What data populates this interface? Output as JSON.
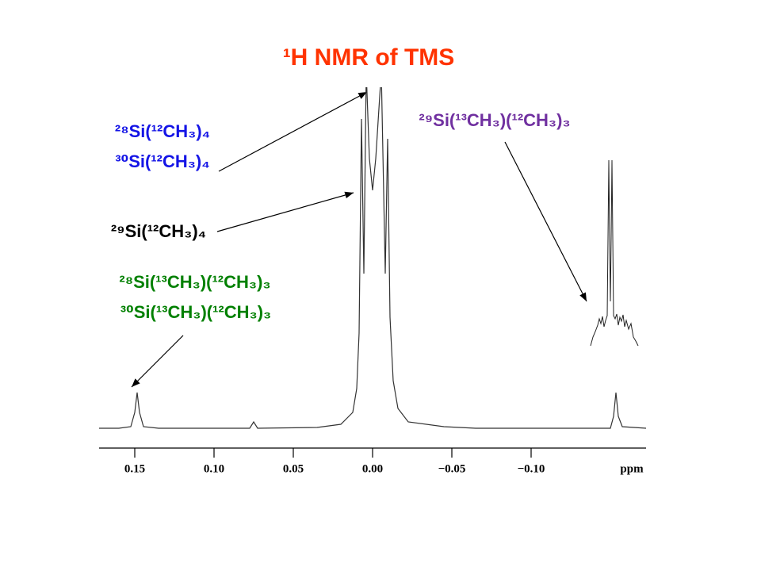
{
  "chart_data": {
    "type": "line",
    "title": "¹H NMR of TMS",
    "title_color": "#ff3300",
    "x_label": "ppm",
    "xlim": [
      0.1725,
      -0.1725
    ],
    "xticks": [
      0.15,
      {
        "value": 0.1,
        "label": "0.10"
      },
      0.05,
      {
        "value": 0,
        "label": "0.00"
      },
      {
        "value": -0.05,
        "label": "−0.05"
      },
      {
        "value": -0.1,
        "label": "−0.10"
      }
    ],
    "ylim": [
      0,
      430
    ],
    "series": [
      {
        "color": "#333333",
        "x": [
          0.1725,
          0.16,
          0.1525,
          0.15,
          0.1485,
          0.147,
          0.1445,
          0.135,
          0.0775,
          0.075,
          0.0725,
          0.035,
          0.02,
          0.0125,
          0.01,
          0.0085,
          0.007,
          0.0055,
          0.004,
          0.002,
          0,
          -0.002,
          -0.0055,
          -0.008,
          -0.0095,
          -0.011,
          -0.013,
          -0.016,
          -0.0225,
          -0.045,
          -0.065,
          -0.15,
          -0.152,
          -0.1535,
          -0.155,
          -0.1575,
          -0.1725
        ],
        "values": [
          0,
          0,
          2,
          20,
          45,
          20,
          2,
          0,
          0,
          8,
          0,
          1,
          5,
          20,
          50,
          120,
          390,
          195,
          450,
          340,
          300,
          340,
          450,
          195,
          365,
          140,
          60,
          25,
          8,
          2,
          0,
          0,
          15,
          45,
          15,
          2,
          0
        ]
      }
    ],
    "annotations": [
      {
        "text": "²⁸Si(¹²CH₃)₄",
        "color": "#1414e6"
      },
      {
        "text": "³⁰Si(¹²CH₃)₄",
        "color": "#1414e6"
      },
      {
        "text": "²⁹Si(¹²CH₃)₄",
        "color": "#000000"
      },
      {
        "text": "²⁸Si(¹³CH₃)(¹²CH₃)₃",
        "color": "#008000"
      },
      {
        "text": "³⁰Si(¹³CH₃)(¹²CH₃)₃",
        "color": "#008000"
      },
      {
        "text": "²⁹Si(¹³CH₃)(¹²CH₃)₃",
        "color": "#7030a0"
      }
    ]
  }
}
